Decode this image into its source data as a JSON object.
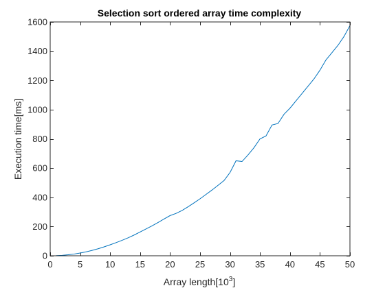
{
  "chart_data": {
    "type": "line",
    "title": "Selection sort ordered array time complexity",
    "xlabel": "Array length[10",
    "xlabel_sup": "3",
    "xlabel_end": "]",
    "ylabel": "Execution time[ms]",
    "xlim": [
      0,
      50
    ],
    "ylim": [
      0,
      1600
    ],
    "xticks": [
      0,
      5,
      10,
      15,
      20,
      25,
      30,
      35,
      40,
      45,
      50
    ],
    "yticks": [
      0,
      200,
      400,
      600,
      800,
      1000,
      1200,
      1400,
      1600
    ],
    "grid": false,
    "series": [
      {
        "color": "#0072BD",
        "x": [
          1,
          2,
          3,
          4,
          5,
          6,
          7,
          8,
          9,
          10,
          11,
          12,
          13,
          14,
          15,
          16,
          17,
          18,
          19,
          20,
          21,
          22,
          23,
          24,
          25,
          26,
          27,
          28,
          29,
          30,
          31,
          32,
          33,
          34,
          35,
          36,
          37,
          38,
          39,
          40,
          41,
          42,
          43,
          44,
          45,
          46,
          47,
          48,
          49,
          50
        ],
        "y": [
          1,
          3,
          7,
          12,
          19,
          27,
          37,
          48,
          61,
          75,
          90,
          106,
          123,
          142,
          163,
          184,
          205,
          228,
          252,
          275,
          290,
          310,
          335,
          362,
          390,
          420,
          450,
          482,
          515,
          570,
          650,
          645,
          690,
          740,
          800,
          820,
          895,
          905,
          968,
          1010,
          1060,
          1110,
          1160,
          1210,
          1270,
          1340,
          1390,
          1440,
          1500,
          1575
        ]
      }
    ]
  }
}
